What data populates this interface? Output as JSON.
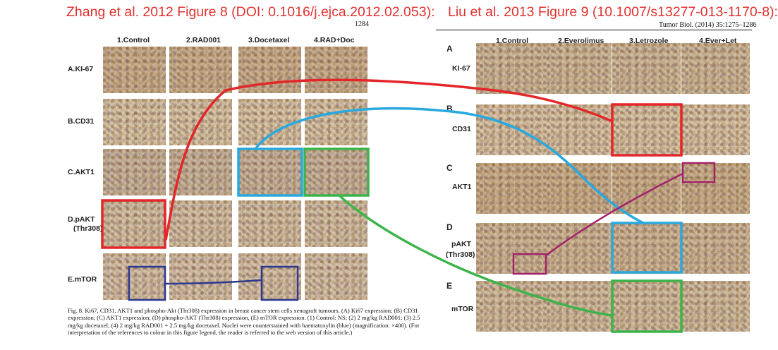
{
  "left_panel": {
    "heading": "Zhang et al. 2012 Figure 8 (DOI: 0.1016/j.ejca.2012.02.053):",
    "page_number": "1284",
    "columns": [
      "1.Control",
      "2.RAD001",
      "3.Docetaxel",
      "4.RAD+Doc"
    ],
    "rows": [
      "A.KI-67",
      "B.CD31",
      "C.AKT1",
      "D.pAKT",
      "E.mTOR"
    ],
    "row_sublabel": "(Thr308)",
    "caption": "Fig. 8.  Ki67, CD31, AKT1 and phospho-Akt (Thr308) expression in breast cancer stem cells xenograft tumours. (A) Ki67 expression; (B) CD31 expression; (C) AKT1 expression; (D) phospho-AKT (Thr308) expression, (E) mTOR expression. (1) Control: NS; (2) 2 mg/kg RAD001; (3) 2.5 mg/kg docetaxel; (4) 2 mg/kg RAD001 + 2.5 mg/kg docetaxel. Nuclei were counterstained with haematoxylin (blue) (magnification: ×400). (For interpretation of the references to colour in this figure legend, the reader is referred to the web version of this article.)"
  },
  "right_panel": {
    "heading": "Liu et al. 2013 Figure 9 (10.1007/s13277-013-1170-8):",
    "journal_ref": "Tumor Biol. (2014) 35:1275–1286",
    "columns": [
      "1.Control",
      "2.Everolimus",
      "3.Letrozole",
      "4.Ever+Let"
    ],
    "row_letters": [
      "A",
      "B",
      "C",
      "D",
      "E"
    ],
    "row_labels": [
      "KI-67",
      "CD31",
      "AKT1",
      "pAKT",
      "mTOR"
    ],
    "row_sublabel": "(Thr308)"
  },
  "colors": {
    "red": "#e3262a",
    "blue": "#29a9df",
    "green": "#3cb44a",
    "navy": "#2b3990",
    "magenta": "#a3226b",
    "heading": "#e0312e"
  }
}
